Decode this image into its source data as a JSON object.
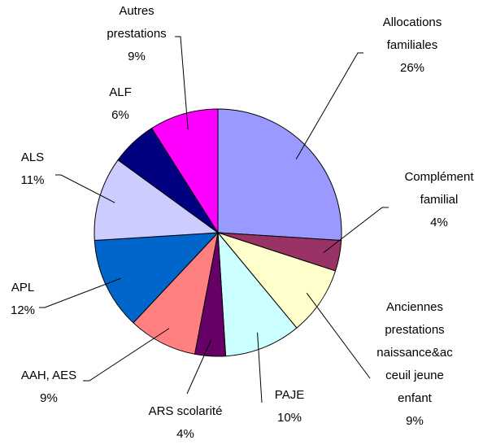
{
  "chart_data": {
    "type": "pie",
    "categories": [
      "Allocations\nfamiliales",
      "Complément\nfamilial",
      "Anciennes\nprestations\nnaissance&ac\nceuil jeune\nenfant",
      "PAJE",
      "ARS scolarité",
      "AAH, AES",
      "APL",
      "ALS",
      "ALF",
      "Autres\nprestations"
    ],
    "values": [
      26,
      4,
      9,
      10,
      4,
      9,
      12,
      11,
      6,
      9
    ],
    "value_labels": [
      "26%",
      "4%",
      "9%",
      "10%",
      "4%",
      "9%",
      "12%",
      "11%",
      "6%",
      "9%"
    ],
    "colors": [
      "#9999ff",
      "#993366",
      "#ffffcc",
      "#ccffff",
      "#660066",
      "#ff8080",
      "#0066cc",
      "#ccccff",
      "#000080",
      "#ff00ff"
    ]
  }
}
